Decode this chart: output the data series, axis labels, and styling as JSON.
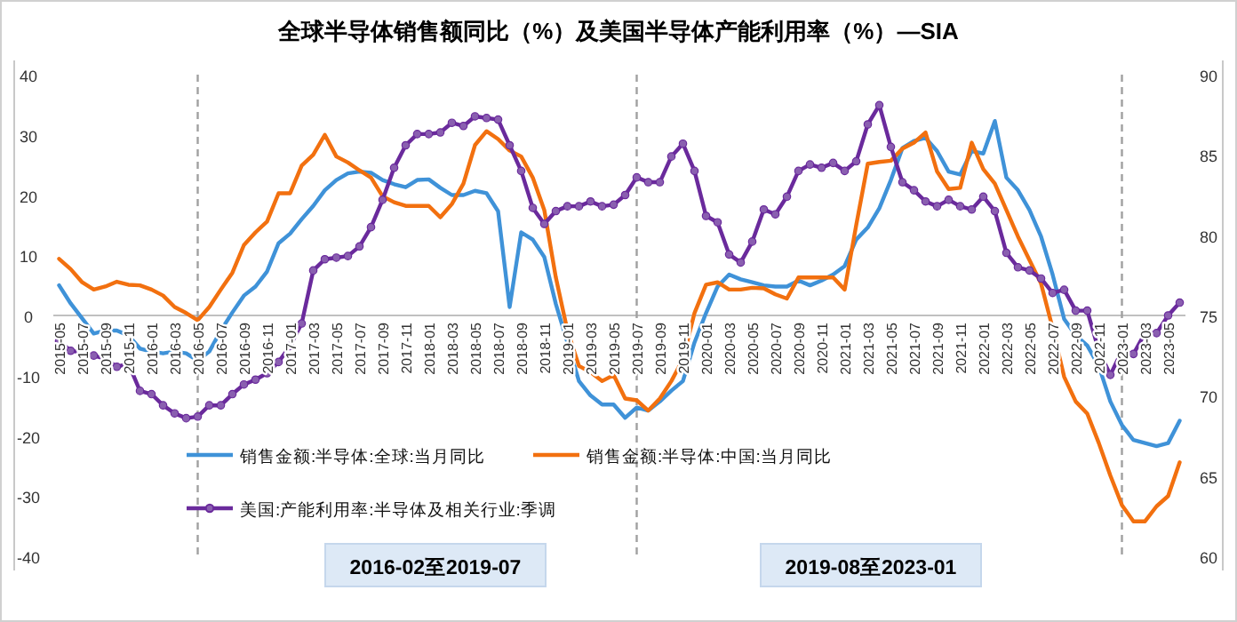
{
  "chart_data": {
    "type": "line",
    "title": "全球半导体销售额同比（%）及美国半导体产能利用率（%）—SIA",
    "x": [
      "2015-05",
      "2015-06",
      "2015-07",
      "2015-08",
      "2015-09",
      "2015-10",
      "2015-11",
      "2015-12",
      "2016-01",
      "2016-02",
      "2016-03",
      "2016-04",
      "2016-05",
      "2016-06",
      "2016-07",
      "2016-08",
      "2016-09",
      "2016-10",
      "2016-11",
      "2016-12",
      "2017-01",
      "2017-02",
      "2017-03",
      "2017-04",
      "2017-05",
      "2017-06",
      "2017-07",
      "2017-08",
      "2017-09",
      "2017-10",
      "2017-11",
      "2017-12",
      "2018-01",
      "2018-02",
      "2018-03",
      "2018-04",
      "2018-05",
      "2018-06",
      "2018-07",
      "2018-08",
      "2018-09",
      "2018-10",
      "2018-11",
      "2018-12",
      "2019-01",
      "2019-02",
      "2019-03",
      "2019-04",
      "2019-05",
      "2019-06",
      "2019-07",
      "2019-08",
      "2019-09",
      "2019-10",
      "2019-11",
      "2019-12",
      "2020-01",
      "2020-02",
      "2020-03",
      "2020-04",
      "2020-05",
      "2020-06",
      "2020-07",
      "2020-08",
      "2020-09",
      "2020-10",
      "2020-11",
      "2020-12",
      "2021-01",
      "2021-02",
      "2021-03",
      "2021-04",
      "2021-05",
      "2021-06",
      "2021-07",
      "2021-08",
      "2021-09",
      "2021-10",
      "2021-11",
      "2021-12",
      "2022-01",
      "2022-02",
      "2022-03",
      "2022-04",
      "2022-05",
      "2022-06",
      "2022-07",
      "2022-08",
      "2022-09",
      "2022-10",
      "2022-11",
      "2022-12",
      "2023-01",
      "2023-02",
      "2023-03",
      "2023-04",
      "2023-05",
      "2023-06"
    ],
    "xlim": [
      "2015-04-16",
      "2023-06-16"
    ],
    "xticks": [
      "2015-05",
      "2015-07",
      "2015-09",
      "2015-11",
      "2016-01",
      "2016-03",
      "2016-05",
      "2016-07",
      "2016-09",
      "2016-11",
      "2017-01",
      "2017-03",
      "2017-05",
      "2017-07",
      "2017-09",
      "2017-11",
      "2018-01",
      "2018-03",
      "2018-05",
      "2018-07",
      "2018-09",
      "2018-11",
      "2019-01",
      "2019-03",
      "2019-05",
      "2019-07",
      "2019-09",
      "2019-11",
      "2020-01",
      "2020-03",
      "2020-05",
      "2020-07",
      "2020-09",
      "2020-11",
      "2021-01",
      "2021-03",
      "2021-05",
      "2021-07",
      "2021-09",
      "2021-11",
      "2022-01",
      "2022-03",
      "2022-05",
      "2022-07",
      "2022-09",
      "2022-11",
      "2023-01",
      "2023-03",
      "2023-05"
    ],
    "series": [
      {
        "name": "销售金额:半导体:全球:当月同比",
        "color": "#3f92d8",
        "marker": "none",
        "values": [
          5.0,
          2,
          -0.5,
          -3,
          -2.5,
          -2.5,
          -3.3,
          -5.5,
          -6,
          -6.3,
          -6,
          -6.3,
          -7.5,
          -6,
          -2.5,
          0.5,
          3.3,
          4.8,
          7.3,
          12,
          13.6,
          16,
          18.2,
          20.8,
          22.5,
          23.6,
          23.9,
          23.7,
          22.5,
          21.8,
          21.3,
          22.5,
          22.6,
          21.2,
          20,
          20,
          20.7,
          20.3,
          17.3,
          1.4,
          13.8,
          12.6,
          9.7,
          1.9,
          -4.5,
          -10.9,
          -13.3,
          -14.8,
          -14.8,
          -17,
          -15.3,
          -15.8,
          -14.3,
          -12.5,
          -10.9,
          -4.5,
          0.4,
          4.8,
          6.8,
          6,
          5.5,
          5,
          4.8,
          4.8,
          5.8,
          5,
          5.8,
          6.8,
          8.2,
          12.6,
          14.6,
          17.8,
          22.5,
          27.8,
          29,
          29.5,
          27.3,
          23.9,
          23.4,
          27.3,
          26.9,
          32.3,
          22.9,
          20.8,
          17.5,
          13.1,
          6.8,
          -0.6,
          -3.3,
          -5,
          -8.4,
          -14.3,
          -18.2,
          -20.7,
          -21.2,
          -21.7,
          -21.2,
          -17.5
        ]
      },
      {
        "name": "销售金额:半导体:中国:当月同比",
        "color": "#f2700f",
        "marker": "none",
        "values": [
          9.4,
          7.7,
          5.5,
          4.3,
          4.8,
          5.6,
          5.1,
          5,
          4.3,
          3.3,
          1.4,
          0.4,
          -0.8,
          1.4,
          4.3,
          7.1,
          11.7,
          13.8,
          15.6,
          20.3,
          20.3,
          24.9,
          26.7,
          30,
          26.4,
          25.4,
          24.1,
          22.9,
          19.8,
          18.8,
          18.2,
          18.2,
          18.2,
          16.3,
          18.5,
          21.9,
          28.3,
          30.6,
          29.3,
          27.4,
          26.4,
          22.9,
          17.5,
          6.3,
          -2.5,
          -8.4,
          -9.4,
          -10.9,
          -9.9,
          -13.8,
          -14.1,
          -15.8,
          -13.8,
          -10.9,
          -7.3,
          0.4,
          5.1,
          5.5,
          4.3,
          4.3,
          4.6,
          4.5,
          3.5,
          2.8,
          6.3,
          6.3,
          6.3,
          6.3,
          4.3,
          15,
          25.2,
          25.5,
          25.7,
          27.7,
          28.7,
          30.4,
          23.9,
          21,
          21.2,
          28.7,
          24.3,
          21.9,
          17.5,
          13.1,
          9.2,
          5.3,
          -2.1,
          -10.2,
          -14.3,
          -16.3,
          -21.2,
          -26.6,
          -31.5,
          -34.2,
          -34.2,
          -31.7,
          -30,
          -24.4
        ]
      },
      {
        "name": "美国:产能利用率:半导体及相关行业:季调",
        "color": "#6a2a9c",
        "marker": "circle",
        "axis": "y2",
        "values": [
          73.4,
          72.8,
          72.7,
          72.5,
          72.3,
          71.8,
          72,
          70.3,
          70.1,
          69.4,
          68.9,
          68.6,
          68.7,
          69.4,
          69.4,
          70.1,
          70.7,
          71,
          71.4,
          72.1,
          73.1,
          74.5,
          77.8,
          78.5,
          78.6,
          78.7,
          79.3,
          80.5,
          82.2,
          84.2,
          85.6,
          86.3,
          86.3,
          86.4,
          87,
          86.8,
          87.4,
          87.3,
          87.2,
          85.6,
          84,
          81.7,
          80.7,
          81.5,
          81.8,
          81.8,
          82.1,
          81.8,
          81.9,
          82.5,
          83.6,
          83.3,
          83.3,
          84.9,
          85.7,
          84,
          81.2,
          80.8,
          78.8,
          78.3,
          79.6,
          81.6,
          81.3,
          82.4,
          84,
          84.4,
          84.2,
          84.5,
          84,
          84.6,
          86.9,
          88.1,
          85.5,
          83.3,
          82.8,
          82.1,
          81.8,
          82.2,
          81.8,
          81.6,
          82.4,
          81.5,
          78.9,
          78,
          77.8,
          77.3,
          76.4,
          76.6,
          75.3,
          75.3,
          72.8,
          71.3,
          72.8,
          72.6,
          73.9,
          73.9,
          75,
          75.8
        ]
      }
    ],
    "ylim": [
      -40,
      40
    ],
    "yticks": [
      -40,
      -30,
      -20,
      -10,
      0,
      10,
      20,
      30,
      40
    ],
    "y2lim": [
      60,
      90
    ],
    "y2ticks": [
      60,
      65,
      70,
      75,
      80,
      85,
      90
    ],
    "ref_lines": [
      {
        "axis": "x",
        "value": "2016-05",
        "color": "#a0a0a0",
        "line_style": "dashed"
      },
      {
        "axis": "x",
        "value": "2019-07",
        "color": "#a0a0a0",
        "line_style": "dashed"
      },
      {
        "axis": "x",
        "value": "2023-01",
        "color": "#a0a0a0",
        "line_style": "dashed"
      }
    ],
    "annotations": [
      "2016-02至2019-07",
      "2019-08至2023-01"
    ],
    "legend": "bottom"
  }
}
